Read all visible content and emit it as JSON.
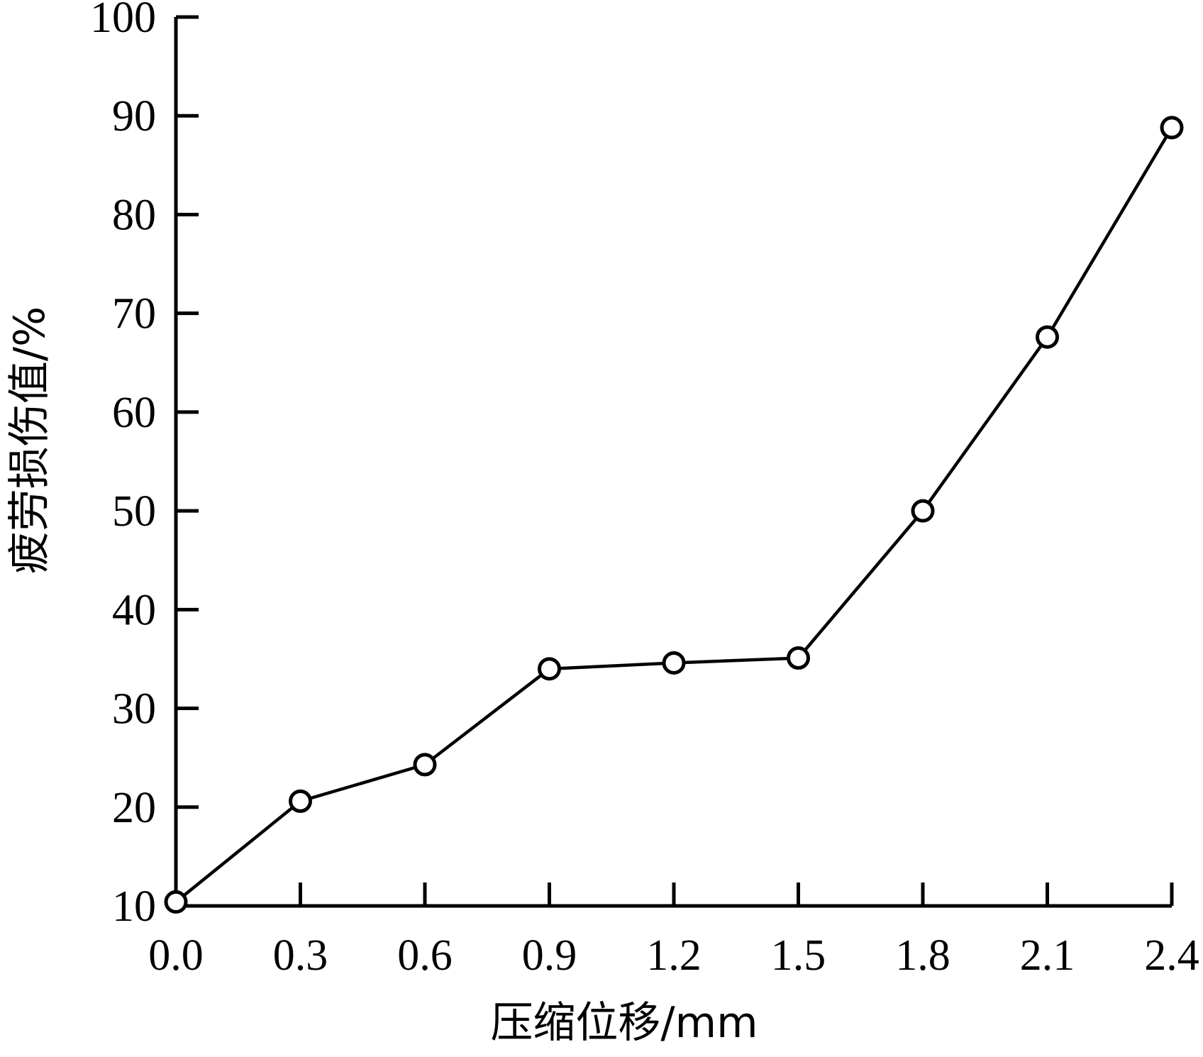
{
  "chart_data": {
    "type": "line",
    "title": "",
    "xlabel": "压缩位移/mm",
    "ylabel": "疲劳损伤值/%",
    "xlim": [
      0.0,
      2.4
    ],
    "ylim": [
      10,
      100
    ],
    "x_ticks": [
      "0.0",
      "0.3",
      "0.6",
      "0.9",
      "1.2",
      "1.5",
      "1.8",
      "2.1",
      "2.4"
    ],
    "y_ticks": [
      "10",
      "20",
      "30",
      "40",
      "50",
      "60",
      "70",
      "80",
      "90",
      "100"
    ],
    "grid": false,
    "legend": "none",
    "marker": "open-circle",
    "line_color": "#000000",
    "series": [
      {
        "x": [
          0.0,
          0.3,
          0.6,
          0.9,
          1.2,
          1.5,
          1.8,
          2.1,
          2.4
        ],
        "values": [
          10.4,
          20.6,
          24.3,
          34.0,
          34.6,
          35.1,
          50.0,
          67.6,
          88.8
        ]
      }
    ]
  }
}
